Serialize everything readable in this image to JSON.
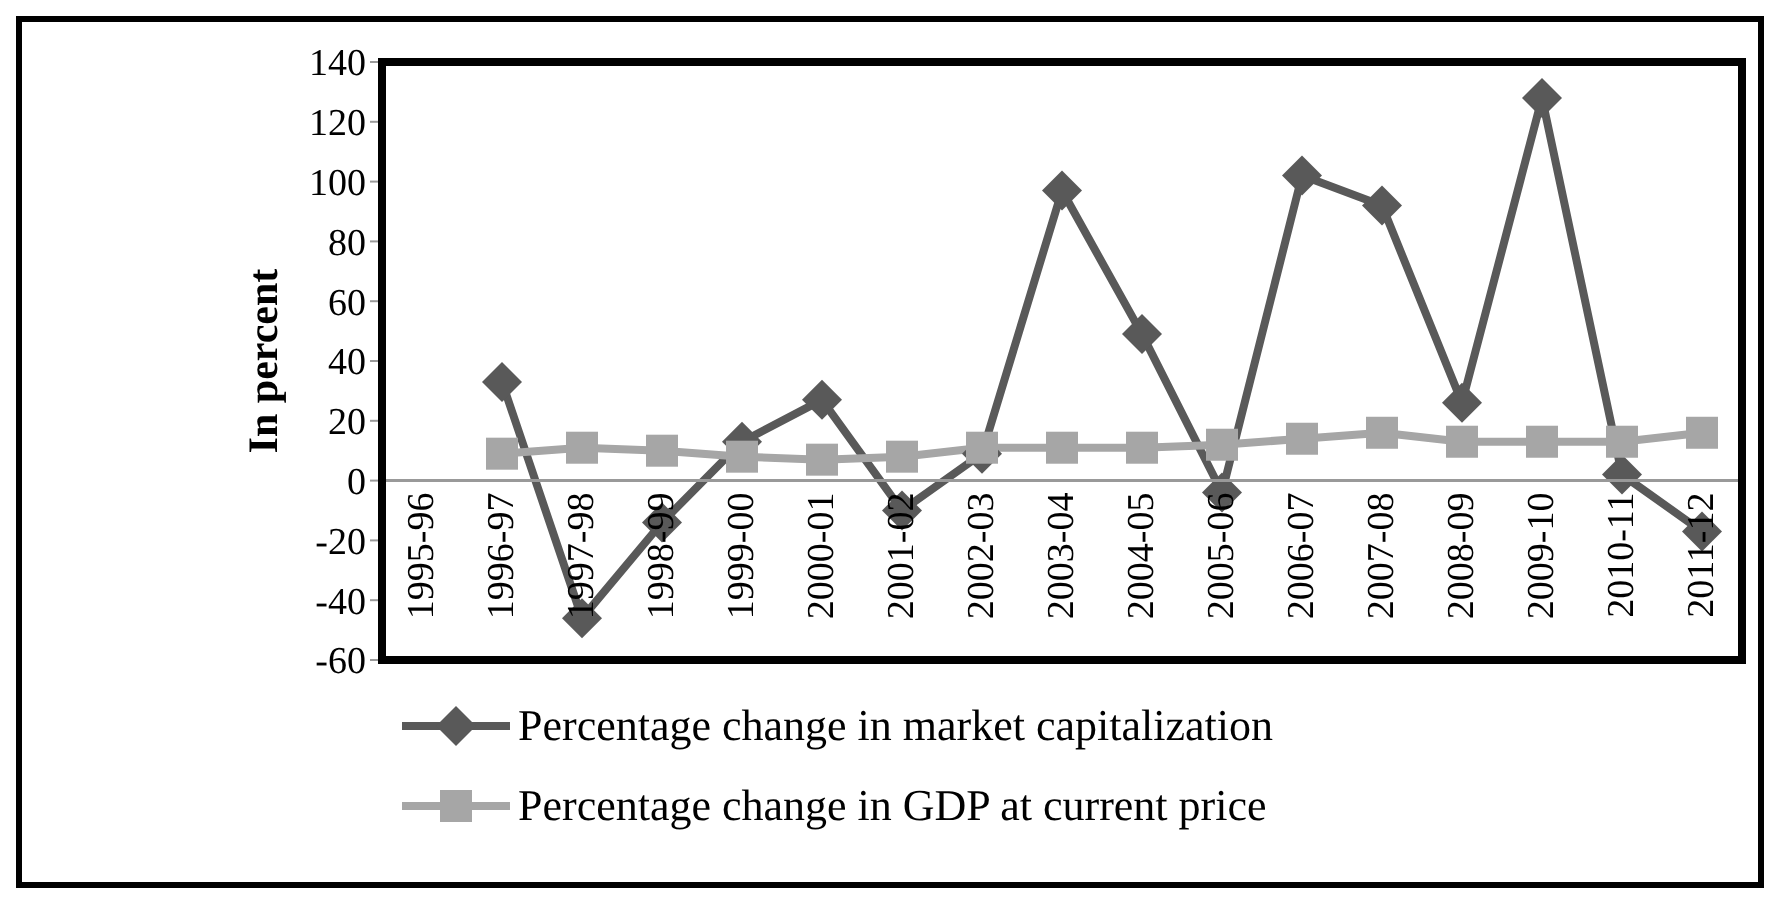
{
  "chart_data": {
    "type": "line",
    "ylabel": "In percent",
    "categories": [
      "1995-96",
      "1996-97",
      "1997-98",
      "1998-99",
      "1999-00",
      "2000-01",
      "2001-02",
      "2002-03",
      "2003-04",
      "2004-05",
      "2005-06",
      "2006-07",
      "2007-08",
      "2008-09",
      "2009-10",
      "2010-11",
      "2011-12"
    ],
    "series": [
      {
        "name": "Percentage change in market capitalization",
        "color": "#595959",
        "marker": "diamond",
        "values": [
          null,
          33,
          -46,
          -14,
          13,
          27,
          -10,
          9,
          97,
          49,
          -4,
          102,
          92,
          26,
          128,
          2,
          -17
        ]
      },
      {
        "name": "Percentage change in GDP at current price",
        "color": "#a6a6a6",
        "marker": "square",
        "values": [
          null,
          9,
          11,
          10,
          8,
          7,
          8,
          11,
          11,
          11,
          12,
          14,
          16,
          13,
          13,
          13,
          16
        ]
      }
    ],
    "ylim": [
      -60,
      140
    ],
    "yticks": [
      -60,
      -40,
      -20,
      0,
      20,
      40,
      60,
      80,
      100,
      120,
      140
    ],
    "legend": "bottom",
    "line_style": "solid"
  }
}
